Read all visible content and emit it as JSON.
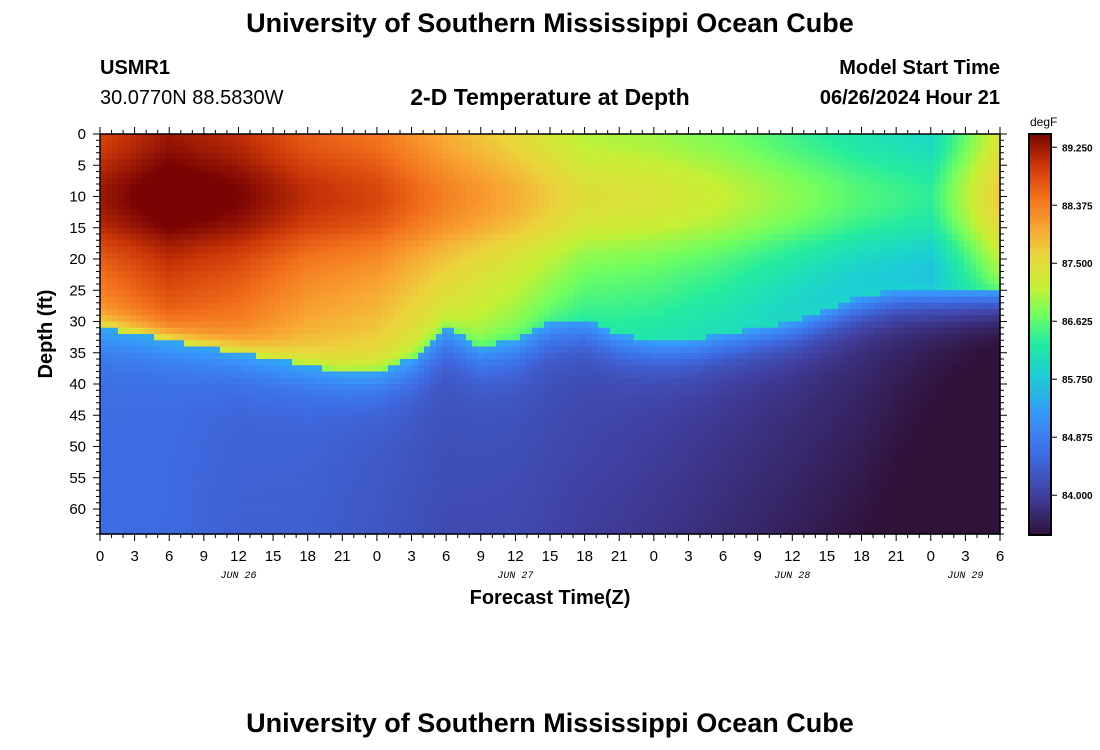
{
  "header": {
    "title": "University of Southern Mississippi Ocean Cube",
    "station_id": "USMR1",
    "station_coords": "30.0770N  88.5830W",
    "subtitle": "2-D Temperature at Depth",
    "model_label": "Model Start Time",
    "model_time": "06/26/2024 Hour 21"
  },
  "footer": {
    "title": "University of Southern Mississippi Ocean Cube"
  },
  "chart_data": {
    "type": "heatmap",
    "title": "2-D Temperature at Depth",
    "xlabel": "Forecast Time(Z)",
    "ylabel": "Depth (ft)",
    "x_hours_range": [
      0,
      78
    ],
    "y_depth_range": [
      0,
      64
    ],
    "x_tick_labels": [
      "0",
      "3",
      "6",
      "9",
      "12",
      "15",
      "18",
      "21",
      "0",
      "3",
      "6",
      "9",
      "12",
      "15",
      "18",
      "21",
      "0",
      "3",
      "6",
      "9",
      "12",
      "15",
      "18",
      "21",
      "0",
      "3",
      "6"
    ],
    "date_labels": [
      {
        "label": "JUN 26",
        "hour": 12
      },
      {
        "label": "JUN 27",
        "hour": 36
      },
      {
        "label": "JUN 28",
        "hour": 60
      },
      {
        "label": "JUN 29",
        "hour": 75
      }
    ],
    "y_ticks": [
      0,
      5,
      10,
      15,
      20,
      25,
      30,
      35,
      40,
      45,
      50,
      55,
      60
    ],
    "colorbar": {
      "unit": "degF",
      "min": 83.4,
      "max": 89.45,
      "tick_labels": [
        "89.250",
        "88.375",
        "87.500",
        "86.625",
        "85.750",
        "84.875",
        "84.000"
      ],
      "tick_values": [
        89.25,
        88.375,
        87.5,
        86.625,
        85.75,
        84.875,
        84.0
      ]
    },
    "thermocline": {
      "hours": [
        0,
        3,
        6,
        9,
        12,
        15,
        18,
        21,
        24,
        27,
        30,
        33,
        36,
        39,
        42,
        45,
        48,
        51,
        54,
        57,
        60,
        63,
        66,
        69,
        72,
        75,
        78
      ],
      "depth_ft": [
        31,
        32,
        33,
        34,
        35,
        36,
        37,
        38,
        38,
        36,
        31,
        34,
        33,
        30,
        29.5,
        32,
        33,
        33,
        32,
        31,
        30,
        28,
        26,
        25,
        25,
        25,
        25
      ]
    },
    "series": [
      {
        "name": "surface_temp_degF",
        "hours": [
          0,
          6,
          12,
          18,
          24,
          30,
          36,
          42,
          48,
          54,
          60,
          66,
          72,
          78
        ],
        "values": [
          88.8,
          89.2,
          89.0,
          88.6,
          88.4,
          87.9,
          87.5,
          87.0,
          86.9,
          86.7,
          86.4,
          86.1,
          85.9,
          87.3
        ]
      },
      {
        "name": "deep_temp_degF",
        "hours": [
          0,
          6,
          12,
          18,
          24,
          30,
          36,
          42,
          48,
          54,
          60,
          66,
          72,
          78
        ],
        "values": [
          84.6,
          84.6,
          84.5,
          84.5,
          84.4,
          84.3,
          84.3,
          84.2,
          84.1,
          84.0,
          83.9,
          83.8,
          83.6,
          83.4
        ]
      }
    ]
  }
}
